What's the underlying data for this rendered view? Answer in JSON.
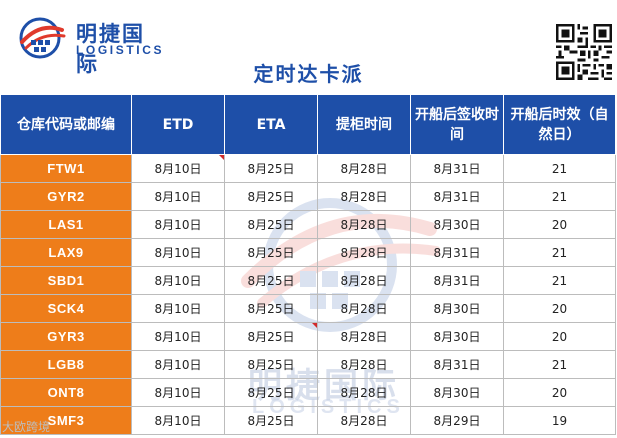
{
  "brand": {
    "name_cn": "明捷国际",
    "name_en": "LOGISTICS"
  },
  "page_title": "定时达卡派",
  "table": {
    "headers": [
      "仓库代码或邮编",
      "ETD",
      "ETA",
      "提柜时间",
      "开船后签收时间",
      "开船后时效（自然日）"
    ],
    "rows": [
      {
        "code": "FTW1",
        "etd": "8月10日",
        "eta": "8月25日",
        "pickup": "8月28日",
        "signed": "8月31日",
        "days": "21"
      },
      {
        "code": "GYR2",
        "etd": "8月10日",
        "eta": "8月25日",
        "pickup": "8月28日",
        "signed": "8月31日",
        "days": "21"
      },
      {
        "code": "LAS1",
        "etd": "8月10日",
        "eta": "8月25日",
        "pickup": "8月28日",
        "signed": "8月30日",
        "days": "20"
      },
      {
        "code": "LAX9",
        "etd": "8月10日",
        "eta": "8月25日",
        "pickup": "8月28日",
        "signed": "8月31日",
        "days": "21"
      },
      {
        "code": "SBD1",
        "etd": "8月10日",
        "eta": "8月25日",
        "pickup": "8月28日",
        "signed": "8月31日",
        "days": "21"
      },
      {
        "code": "SCK4",
        "etd": "8月10日",
        "eta": "8月25日",
        "pickup": "8月28日",
        "signed": "8月30日",
        "days": "20"
      },
      {
        "code": "GYR3",
        "etd": "8月10日",
        "eta": "8月25日",
        "pickup": "8月28日",
        "signed": "8月30日",
        "days": "20"
      },
      {
        "code": "LGB8",
        "etd": "8月10日",
        "eta": "8月25日",
        "pickup": "8月28日",
        "signed": "8月31日",
        "days": "21"
      },
      {
        "code": "ONT8",
        "etd": "8月10日",
        "eta": "8月25日",
        "pickup": "8月28日",
        "signed": "8月30日",
        "days": "20"
      },
      {
        "code": "SMF3",
        "etd": "8月10日",
        "eta": "8月25日",
        "pickup": "8月28日",
        "signed": "8月29日",
        "days": "19"
      }
    ]
  },
  "watermark": {
    "name_cn": "明捷国际",
    "name_en": "LOGISTICS"
  },
  "source_mark": "大欧跨境",
  "colors": {
    "brand_blue": "#1e4fa8",
    "code_orange": "#ee7d1a",
    "logo_red": "#e03a2c"
  }
}
